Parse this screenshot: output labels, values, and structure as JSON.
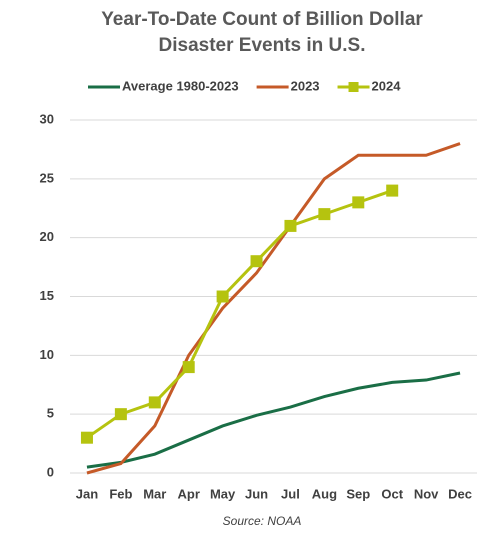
{
  "chart_data": {
    "type": "line",
    "title": [
      "Year-To-Date  Count of Billion Dollar",
      "Disaster Events in U.S."
    ],
    "source": "Source: NOAA",
    "categories": [
      "Jan",
      "Feb",
      "Mar",
      "Apr",
      "May",
      "Jun",
      "Jul",
      "Aug",
      "Sep",
      "Oct",
      "Nov",
      "Dec"
    ],
    "series": [
      {
        "name": "Average 1980-2023",
        "color": "#1a6e46",
        "marker": false,
        "values": [
          0.5,
          0.9,
          1.6,
          2.8,
          4.0,
          4.9,
          5.6,
          6.5,
          7.2,
          7.7,
          7.9,
          8.5
        ]
      },
      {
        "name": "2023",
        "color": "#c55a28",
        "marker": false,
        "values": [
          0,
          0.8,
          4,
          10,
          14,
          17,
          21,
          25,
          27,
          27,
          27,
          28
        ]
      },
      {
        "name": "2024",
        "color": "#b5c30f",
        "marker": true,
        "values": [
          3,
          5,
          6,
          9,
          15,
          18,
          21,
          22,
          23,
          24,
          null,
          null
        ]
      }
    ],
    "ylim": [
      0,
      30
    ],
    "yticks": [
      0,
      5,
      10,
      15,
      20,
      25,
      30
    ],
    "grid": true,
    "legend": "top"
  }
}
